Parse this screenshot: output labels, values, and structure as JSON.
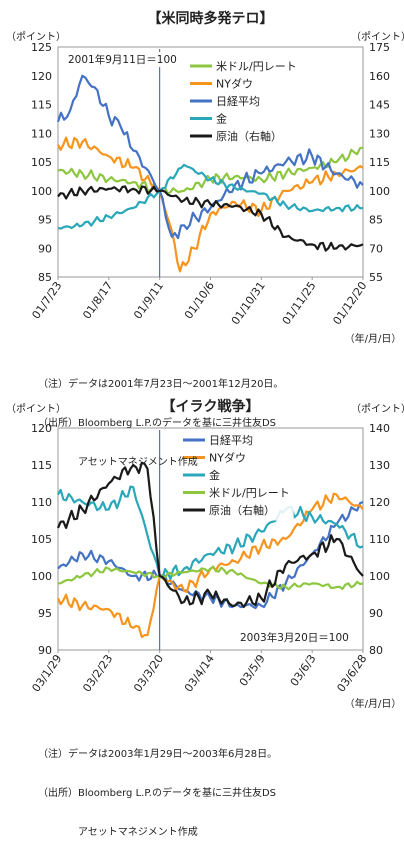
{
  "chart_data": [
    {
      "type": "line",
      "title": "【米同時多発テロ】",
      "left_axis_unit": "（ポイント）",
      "right_axis_unit": "（ポイント）",
      "x_unit": "（年/月/日）",
      "annotation": "2001年9月11日＝100",
      "x_ticks": [
        "01/7/23",
        "01/8/17",
        "01/9/11",
        "01/10/6",
        "01/10/31",
        "01/11/25",
        "01/12/20"
      ],
      "ylim": [
        85,
        125
      ],
      "yticks": [
        85,
        90,
        95,
        100,
        105,
        110,
        115,
        120,
        125
      ],
      "y2lim": [
        55,
        175
      ],
      "y2ticks": [
        55,
        70,
        85,
        100,
        115,
        130,
        145,
        160,
        175
      ],
      "event_x": "01/9/11",
      "grid": false,
      "legend_position": "top-right",
      "series": [
        {
          "name": "米ドル/円レート",
          "color": "#8dc63f",
          "axis": "left",
          "x": [
            "01/7/23",
            "01/8/4",
            "01/8/17",
            "01/8/29",
            "01/9/11",
            "01/9/23",
            "01/10/6",
            "01/10/18",
            "01/10/31",
            "01/11/12",
            "01/11/25",
            "01/12/7",
            "01/12/20"
          ],
          "values": [
            103.5,
            103,
            102,
            101.5,
            100,
            100,
            102,
            102.5,
            102,
            103,
            104,
            105,
            107.5
          ]
        },
        {
          "name": "NYダウ",
          "color": "#f7941d",
          "axis": "left",
          "x": [
            "01/7/23",
            "01/8/4",
            "01/8/17",
            "01/8/29",
            "01/9/11",
            "01/9/17",
            "01/9/21",
            "01/9/28",
            "01/10/6",
            "01/10/18",
            "01/10/31",
            "01/11/12",
            "01/11/25",
            "01/12/7",
            "01/12/20"
          ],
          "values": [
            108,
            108.5,
            106,
            104,
            100,
            93,
            86,
            90,
            96,
            98,
            96.5,
            100,
            101.5,
            103,
            104
          ]
        },
        {
          "name": "日経平均",
          "color": "#4472c4",
          "axis": "left",
          "x": [
            "01/7/23",
            "01/7/29",
            "01/8/4",
            "01/8/10",
            "01/8/17",
            "01/8/23",
            "01/8/29",
            "01/9/4",
            "01/9/11",
            "01/9/17",
            "01/9/23",
            "01/10/6",
            "01/10/18",
            "01/10/31",
            "01/11/12",
            "01/11/25",
            "01/12/7",
            "01/12/20"
          ],
          "values": [
            112,
            114,
            120,
            118,
            113,
            111,
            107,
            104,
            100,
            92,
            94,
            97,
            101,
            103,
            105,
            106,
            103,
            101
          ]
        },
        {
          "name": "金",
          "color": "#2aa7b8",
          "axis": "left",
          "x": [
            "01/7/23",
            "01/8/4",
            "01/8/17",
            "01/8/29",
            "01/9/11",
            "01/9/23",
            "01/10/6",
            "01/10/18",
            "01/10/31",
            "01/11/12",
            "01/11/25",
            "01/12/7",
            "01/12/20"
          ],
          "values": [
            93.5,
            94,
            95.5,
            97,
            100,
            104.5,
            102,
            100.5,
            99.5,
            97.5,
            96.5,
            97,
            97
          ]
        },
        {
          "name": "原油（右軸）",
          "color": "#1a1a1a",
          "axis": "right",
          "x": [
            "01/7/23",
            "01/8/4",
            "01/8/17",
            "01/8/29",
            "01/9/11",
            "01/9/23",
            "01/10/6",
            "01/10/18",
            "01/10/31",
            "01/11/12",
            "01/11/25",
            "01/12/7",
            "01/12/20"
          ],
          "values": [
            97,
            100,
            101,
            101,
            100,
            95,
            93,
            92,
            88,
            76,
            72,
            70,
            72
          ]
        }
      ]
    },
    {
      "type": "line",
      "title": "【イラク戦争】",
      "left_axis_unit": "（ポイント）",
      "right_axis_unit": "（ポイント）",
      "x_unit": "（年/月/日）",
      "annotation": "2003年3月20日＝100",
      "x_ticks": [
        "03/1/29",
        "03/2/23",
        "03/3/20",
        "03/4/14",
        "03/5/9",
        "03/6/3",
        "03/6/28"
      ],
      "ylim": [
        90,
        120
      ],
      "yticks": [
        90,
        95,
        100,
        105,
        110,
        115,
        120
      ],
      "y2lim": [
        80,
        140
      ],
      "y2ticks": [
        80,
        90,
        100,
        110,
        120,
        130,
        140
      ],
      "event_x": "03/3/20",
      "grid": false,
      "legend_position": "top-center",
      "series": [
        {
          "name": "日経平均",
          "color": "#4472c4",
          "axis": "left",
          "x": [
            "03/1/29",
            "03/2/10",
            "03/2/23",
            "03/3/7",
            "03/3/20",
            "03/4/1",
            "03/4/14",
            "03/4/26",
            "03/5/9",
            "03/5/21",
            "03/6/3",
            "03/6/15",
            "03/6/28"
          ],
          "values": [
            101,
            103,
            102,
            100,
            100,
            98,
            97,
            96,
            96,
            99,
            103,
            107,
            110
          ]
        },
        {
          "name": "NYダウ",
          "color": "#f7941d",
          "axis": "left",
          "x": [
            "03/1/29",
            "03/2/10",
            "03/2/23",
            "03/3/7",
            "03/3/14",
            "03/3/20",
            "03/4/1",
            "03/4/14",
            "03/4/26",
            "03/5/9",
            "03/5/21",
            "03/6/3",
            "03/6/15",
            "03/6/28"
          ],
          "values": [
            97,
            96,
            95.5,
            93,
            92,
            100,
            98,
            101,
            102,
            104,
            105,
            109,
            111,
            109
          ]
        },
        {
          "name": "金",
          "color": "#2aa7b8",
          "axis": "left",
          "x": [
            "03/1/29",
            "03/2/10",
            "03/2/23",
            "03/3/7",
            "03/3/20",
            "03/4/1",
            "03/4/14",
            "03/4/26",
            "03/5/9",
            "03/5/21",
            "03/6/3",
            "03/6/15",
            "03/6/28"
          ],
          "values": [
            111,
            110,
            109,
            112,
            100,
            101,
            103,
            104,
            106,
            109,
            108,
            107,
            104
          ]
        },
        {
          "name": "米ドル/円レート",
          "color": "#8dc63f",
          "axis": "left",
          "x": [
            "03/1/29",
            "03/2/10",
            "03/2/23",
            "03/3/7",
            "03/3/20",
            "03/4/1",
            "03/4/14",
            "03/4/26",
            "03/5/9",
            "03/5/21",
            "03/6/3",
            "03/6/15",
            "03/6/28"
          ],
          "values": [
            99,
            100,
            101,
            100.5,
            100,
            100.5,
            101,
            100.5,
            99,
            98.5,
            99,
            98.5,
            99
          ]
        },
        {
          "name": "原油（右軸）",
          "color": "#1a1a1a",
          "axis": "right",
          "x": [
            "03/1/29",
            "03/2/10",
            "03/2/23",
            "03/3/7",
            "03/3/14",
            "03/3/20",
            "03/4/1",
            "03/4/14",
            "03/4/26",
            "03/5/9",
            "03/5/21",
            "03/6/3",
            "03/6/15",
            "03/6/28"
          ],
          "values": [
            113,
            118,
            125,
            130,
            129,
            100,
            93,
            95,
            92,
            94,
            103,
            106,
            110,
            100
          ]
        }
      ]
    }
  ],
  "notes": [
    {
      "lines": [
        "（注）データは2001年7月23日～2001年12月20日。",
        "（出所）Bloomberg L.P.のデータを基に三井住友DS",
        "　　　　アセットマネジメント作成"
      ]
    },
    {
      "lines": [
        "（注）データは2003年1月29日～2003年6月28日。",
        "（出所）Bloomberg L.P.のデータを基に三井住友DS",
        "　　　　アセットマネジメント作成"
      ]
    }
  ]
}
